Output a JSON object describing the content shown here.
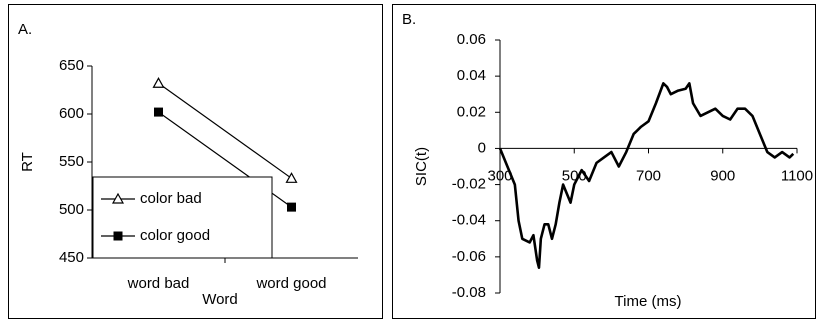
{
  "chart_data": [
    {
      "type": "line",
      "label": "A.",
      "x_label": "Word",
      "y_label": "RT",
      "categories": [
        "word bad",
        "word good"
      ],
      "series": [
        {
          "name": "color bad",
          "color": "#000000",
          "marker": "triangle",
          "values": [
            632,
            533
          ]
        },
        {
          "name": "color good",
          "color": "#000000",
          "marker": "square",
          "values": [
            602,
            503
          ]
        }
      ],
      "ylim": [
        450,
        650
      ],
      "yticks": [
        450,
        500,
        550,
        600,
        650
      ],
      "grid": false,
      "legend": "lower-left"
    },
    {
      "type": "xyline",
      "label": "B.",
      "x_label": "Time (ms)",
      "y_label": "SIC(t)",
      "x": [
        300,
        320,
        340,
        350,
        360,
        380,
        390,
        400,
        405,
        410,
        420,
        430,
        440,
        450,
        460,
        470,
        480,
        490,
        500,
        520,
        540,
        560,
        580,
        600,
        620,
        640,
        660,
        680,
        700,
        720,
        740,
        750,
        760,
        780,
        800,
        810,
        820,
        840,
        860,
        880,
        900,
        920,
        940,
        960,
        980,
        1000,
        1020,
        1040,
        1060,
        1080,
        1090
      ],
      "series": [
        {
          "name": "SIC(t)",
          "color": "#000000",
          "values": [
            0,
            -0.01,
            -0.02,
            -0.04,
            -0.05,
            -0.052,
            -0.048,
            -0.062,
            -0.066,
            -0.05,
            -0.042,
            -0.042,
            -0.05,
            -0.042,
            -0.03,
            -0.02,
            -0.025,
            -0.03,
            -0.02,
            -0.012,
            -0.018,
            -0.008,
            -0.005,
            -0.002,
            -0.01,
            -0.002,
            0.008,
            0.012,
            0.015,
            0.025,
            0.036,
            0.034,
            0.03,
            0.032,
            0.033,
            0.036,
            0.025,
            0.018,
            0.02,
            0.022,
            0.018,
            0.016,
            0.022,
            0.022,
            0.018,
            0.008,
            -0.002,
            -0.005,
            -0.002,
            -0.005,
            -0.003
          ]
        }
      ],
      "xlim": [
        300,
        1100
      ],
      "xticks": [
        300,
        500,
        700,
        900,
        1100
      ],
      "ylim": [
        -0.08,
        0.06
      ],
      "yticks": [
        -0.08,
        -0.06,
        -0.04,
        -0.02,
        0,
        0.02,
        0.04,
        0.06
      ],
      "grid": false
    }
  ]
}
